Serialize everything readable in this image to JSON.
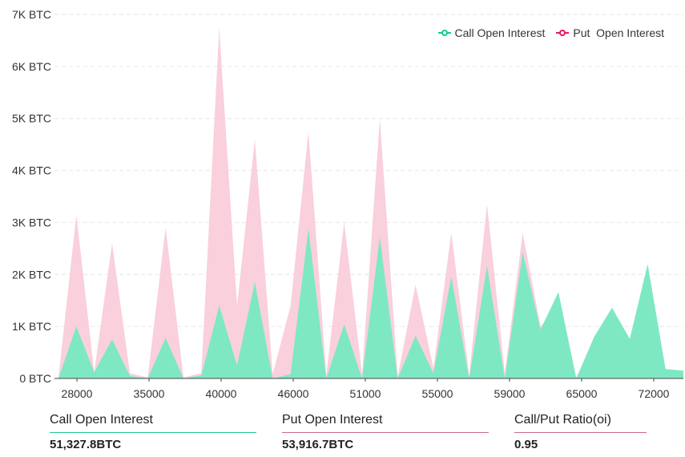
{
  "chart_data": {
    "type": "area",
    "legend_position": "top-right",
    "grid": "horizontal dashed",
    "ylim": [
      0,
      7000
    ],
    "y_ticks": [
      0,
      1000,
      2000,
      3000,
      4000,
      5000,
      6000,
      7000
    ],
    "y_tick_labels": [
      "0 BTC",
      "1K BTC",
      "2K BTC",
      "3K BTC",
      "4K BTC",
      "5K BTC",
      "6K BTC",
      "7K BTC"
    ],
    "x_tick_labels": [
      "28000",
      "35000",
      "40000",
      "46000",
      "51000",
      "55000",
      "59000",
      "65000",
      "72000"
    ],
    "series": [
      {
        "name": "Put  Open Interest",
        "color": "#f9d0dc",
        "marker_color": "#e8195a",
        "values": [
          20,
          3150,
          120,
          2600,
          100,
          20,
          2900,
          20,
          100,
          6750,
          1400,
          4600,
          80,
          1400,
          4750,
          60,
          3000,
          80,
          5000,
          40,
          1800,
          200,
          2800,
          60,
          3350,
          100,
          2800,
          1000,
          1350,
          20,
          700,
          1300,
          700,
          2050,
          150,
          120
        ]
      },
      {
        "name": "Call Open Interest",
        "color": "#7ee8c3",
        "marker_color": "#0fcf8d",
        "values": [
          0,
          1000,
          120,
          750,
          50,
          0,
          780,
          0,
          60,
          1400,
          250,
          1850,
          0,
          80,
          2880,
          0,
          1040,
          0,
          2720,
          0,
          820,
          100,
          1960,
          0,
          2160,
          0,
          2430,
          940,
          1660,
          0,
          800,
          1360,
          760,
          2200,
          180,
          150
        ]
      }
    ]
  },
  "legend": {
    "call_label": "Call Open Interest",
    "put_label": "Put  Open Interest"
  },
  "summary": {
    "call_label": "Call Open Interest",
    "call_value": "51,327.8BTC",
    "put_label": "Put Open Interest",
    "put_value": "53,916.7BTC",
    "ratio_label": "Call/Put Ratio(oi)",
    "ratio_value": "0.95",
    "call_line_color": "#20c98e",
    "put_line_color": "#cc6a8a",
    "ratio_line_color": "#cc6a8a"
  }
}
